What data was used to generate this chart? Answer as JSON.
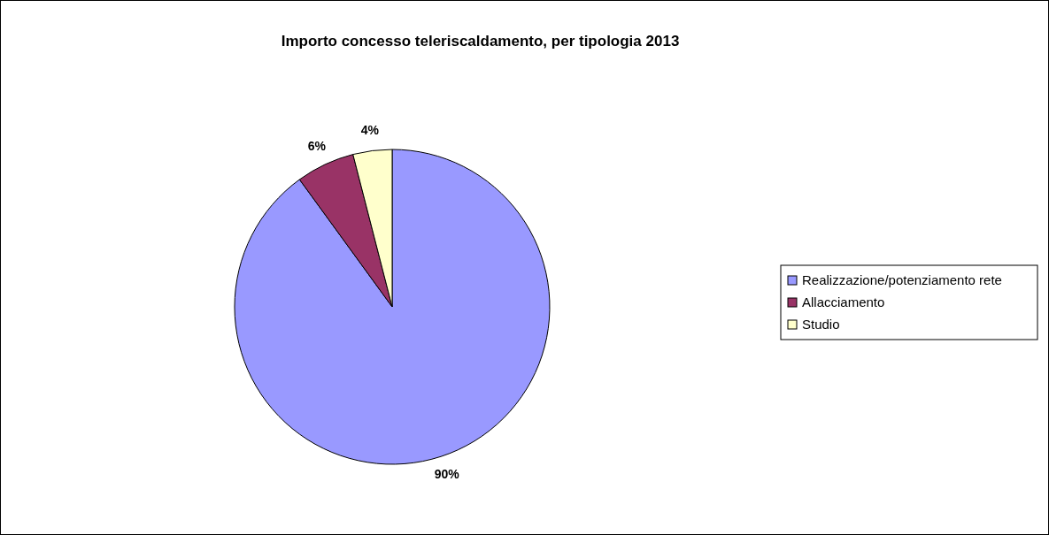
{
  "chart_data": {
    "type": "pie",
    "title": "Importo concesso teleriscaldamento, per tipologia 2013",
    "categories": [
      "Realizzazione/potenziamento rete",
      "Allacciamento",
      "Studio"
    ],
    "values": [
      90,
      6,
      4
    ],
    "colors": [
      "#9999ff",
      "#993366",
      "#ffffcc"
    ],
    "value_labels": [
      "90%",
      "6%",
      "4%"
    ],
    "legend": "right"
  }
}
